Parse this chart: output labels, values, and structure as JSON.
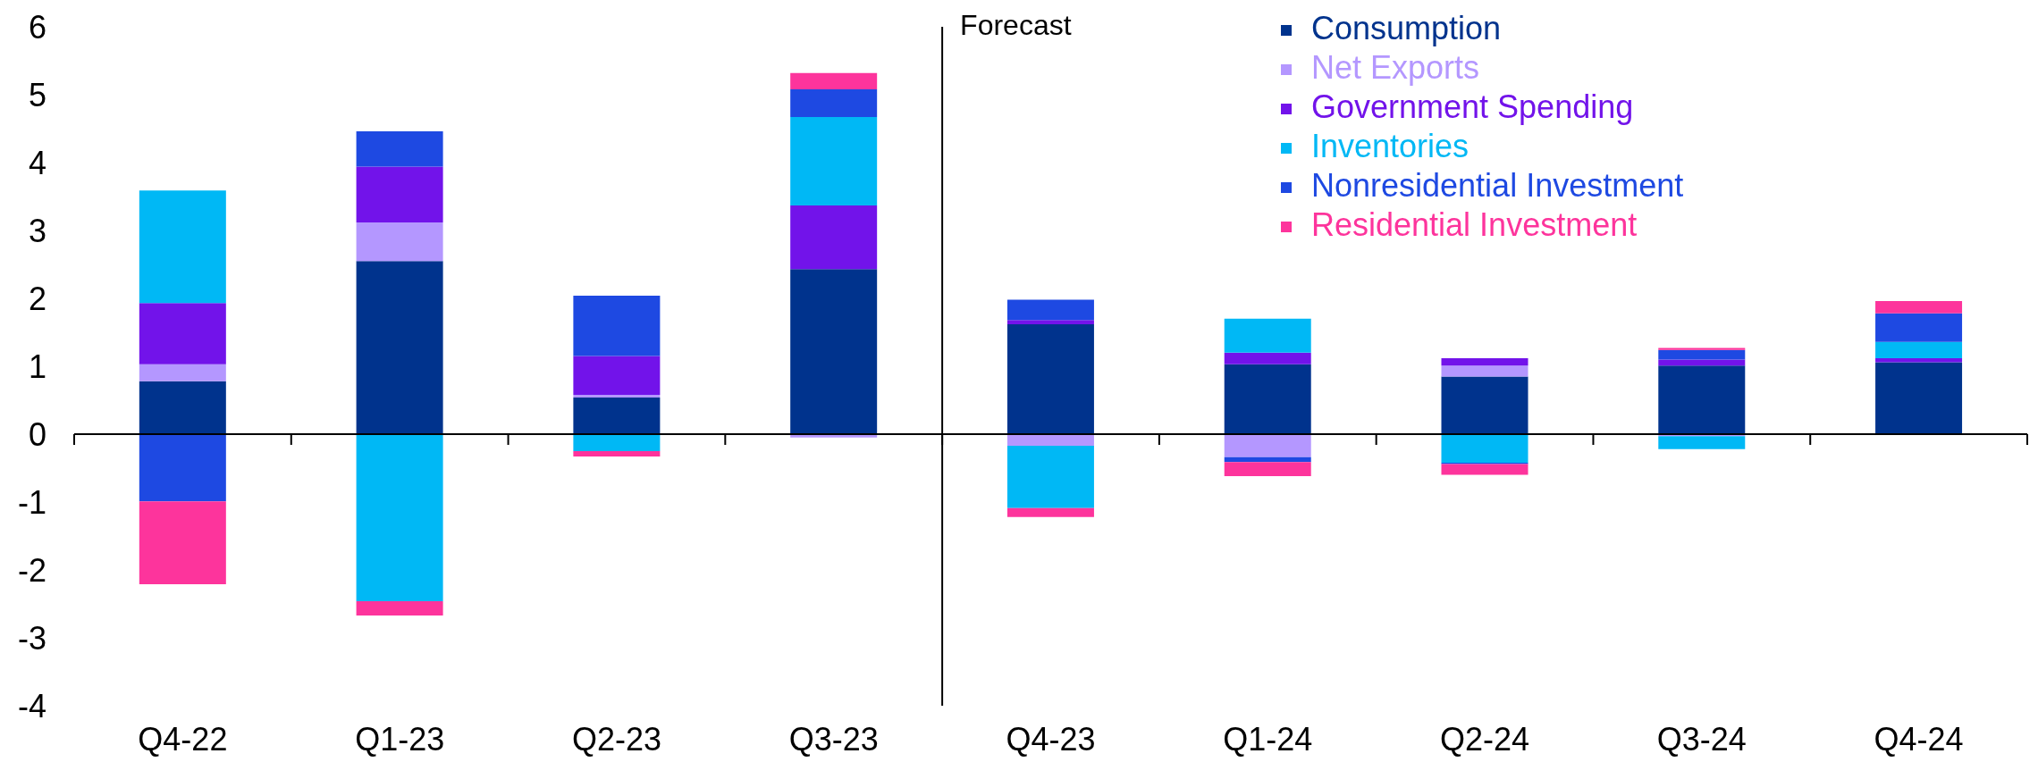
{
  "chart_data": {
    "type": "bar",
    "stacked": true,
    "categories": [
      "Q4-22",
      "Q1-23",
      "Q2-23",
      "Q3-23",
      "Q4-23",
      "Q1-24",
      "Q2-24",
      "Q3-24",
      "Q4-24"
    ],
    "series": [
      {
        "name": "Consumption",
        "color": "#00338d",
        "values": [
          0.78,
          2.55,
          0.54,
          2.43,
          1.62,
          1.03,
          0.85,
          1.01,
          1.06
        ]
      },
      {
        "name": "Net Exports",
        "color": "#b497ff",
        "values": [
          0.25,
          0.57,
          0.04,
          -0.05,
          -0.17,
          -0.34,
          0.16,
          -0.03,
          0
        ]
      },
      {
        "name": "Government Spending",
        "color": "#7213ea",
        "values": [
          0.9,
          0.82,
          0.57,
          0.94,
          0.06,
          0.17,
          0.11,
          0.09,
          0.06
        ]
      },
      {
        "name": "Inventories",
        "color": "#00b8f5",
        "values": [
          1.66,
          -2.46,
          -0.25,
          1.3,
          -0.92,
          0.5,
          -0.42,
          -0.19,
          0.24
        ]
      },
      {
        "name": "Nonresidential Investment",
        "color": "#1e49e2",
        "values": [
          -0.99,
          0.52,
          0.89,
          0.41,
          0.3,
          -0.07,
          -0.02,
          0.14,
          0.42
        ]
      },
      {
        "name": "Residential Investment",
        "color": "#fd349c",
        "values": [
          -1.22,
          -0.21,
          -0.08,
          0.24,
          -0.13,
          -0.21,
          -0.16,
          0.03,
          0.18
        ]
      }
    ],
    "ylim": [
      -4,
      6
    ],
    "yticks": [
      -4,
      -3,
      -2,
      -1,
      0,
      1,
      2,
      3,
      4,
      5,
      6
    ],
    "legend": "top right",
    "annotations": [
      "Forecast"
    ]
  }
}
